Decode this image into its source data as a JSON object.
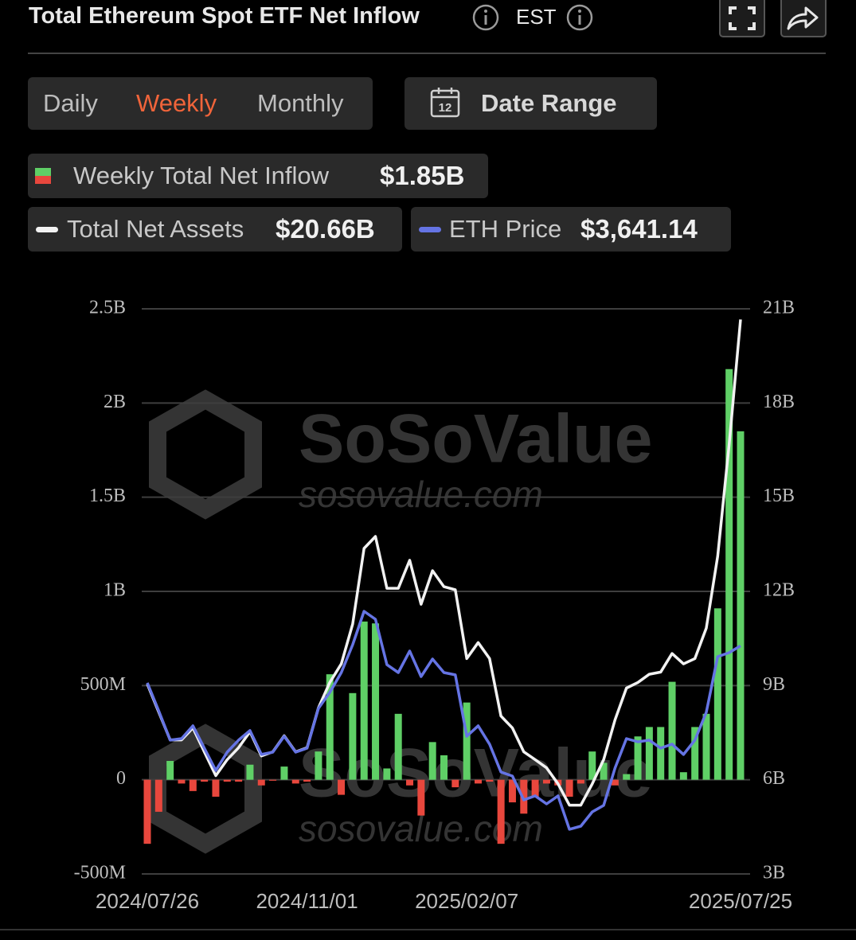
{
  "chart_data": {
    "type": "bar",
    "title": "Total Ethereum Spot ETF Net Inflow",
    "timezone": "EST",
    "periods": [
      "Daily",
      "Weekly",
      "Monthly"
    ],
    "selected_period": 1,
    "date_range": "Date Range",
    "date_range_icon": "12",
    "watermark": [
      "SoSoValue",
      "sosovalue.com"
    ],
    "categories": [
      "2024/07/26",
      null,
      null,
      null,
      null,
      null,
      null,
      null,
      null,
      null,
      null,
      null,
      null,
      null,
      "2024/11/01",
      null,
      null,
      null,
      null,
      null,
      null,
      null,
      null,
      null,
      null,
      null,
      null,
      null,
      "2025/02/07",
      null,
      null,
      null,
      null,
      null,
      null,
      null,
      null,
      null,
      null,
      null,
      null,
      null,
      null,
      null,
      null,
      null,
      null,
      null,
      null,
      null,
      null,
      null,
      "2025/07/25"
    ],
    "series": [
      {
        "name": "Weekly Total Net Inflow",
        "type": "bar",
        "color": "#5fcf66",
        "negative_color": "#e8473d",
        "latest_label": "$1.85B",
        "values": [
          -0.34,
          -0.17,
          0.1,
          -0.02,
          -0.06,
          -0.01,
          -0.09,
          -0.01,
          -0.01,
          0.08,
          -0.03,
          -0.005,
          0.07,
          -0.02,
          -0.01,
          0.15,
          0.56,
          -0.08,
          0.46,
          0.84,
          0.83,
          0.06,
          0.35,
          -0.03,
          -0.19,
          0.2,
          0.13,
          -0.04,
          0.41,
          -0.02,
          -0.01,
          -0.34,
          -0.12,
          -0.18,
          -0.09,
          -0.02,
          -0.03,
          -0.09,
          -0.02,
          0.15,
          0.09,
          -0.03,
          0.03,
          0.23,
          0.28,
          0.28,
          0.52,
          0.04,
          0.28,
          0.35,
          0.91,
          2.18,
          1.85
        ]
      },
      {
        "name": "Total Net Assets",
        "type": "line",
        "axis": "y2",
        "color": "#f2f2f2",
        "latest_label": "$20.66B",
        "values": [
          9.05,
          8.16,
          7.27,
          7.27,
          7.65,
          6.89,
          6.13,
          6.64,
          7.02,
          7.53,
          6.76,
          6.89,
          7.4,
          6.89,
          7.02,
          8.29,
          9.1,
          9.69,
          10.96,
          13.37,
          13.75,
          12.1,
          12.1,
          12.99,
          11.59,
          12.66,
          12.15,
          12.05,
          9.86,
          10.37,
          9.86,
          8.03,
          7.65,
          6.89,
          6.64,
          6.38,
          5.87,
          5.19,
          5.19,
          5.87,
          6.64,
          7.91,
          8.92,
          9.1,
          9.36,
          9.43,
          10.02,
          9.69,
          9.86,
          10.83,
          13.12,
          16.68,
          20.66
        ]
      },
      {
        "name": "ETH Price",
        "type": "line",
        "axis": "y3",
        "color": "#6574e4",
        "latest_label": "$3,641.14",
        "values": [
          3261,
          2975,
          2673,
          2689,
          2820,
          2591,
          2362,
          2550,
          2673,
          2771,
          2526,
          2550,
          2713,
          2550,
          2591,
          2999,
          3163,
          3367,
          3653,
          3996,
          3914,
          3448,
          3367,
          3588,
          3326,
          3506,
          3367,
          3343,
          2713,
          2820,
          2632,
          2346,
          2305,
          2060,
          2101,
          2019,
          2101,
          1758,
          1790,
          1937,
          2003,
          2387,
          2689,
          2656,
          2673,
          2591,
          2632,
          2526,
          2673,
          2959,
          3530,
          3571,
          3641.14
        ]
      }
    ],
    "ylim": [
      -0.5,
      2.5
    ],
    "yticks": [
      {
        "value": -0.5,
        "label": "-500M"
      },
      0,
      {
        "value": 0.5,
        "label": "500M"
      },
      {
        "value": 1,
        "label": "1B"
      },
      {
        "value": 1.5,
        "label": "1.5B"
      },
      {
        "value": 2,
        "label": "2B"
      },
      {
        "value": 2.5,
        "label": "2.5B"
      }
    ],
    "y2lim": [
      3,
      21
    ],
    "y2ticks": [
      {
        "value": 3,
        "label": "3B"
      },
      {
        "value": 6,
        "label": "6B"
      },
      {
        "value": 9,
        "label": "9B"
      },
      {
        "value": 12,
        "label": "12B"
      },
      {
        "value": 15,
        "label": "15B"
      },
      {
        "value": 18,
        "label": "18B"
      },
      {
        "value": 21,
        "label": "21B"
      }
    ],
    "y3lim": [
      1300,
      7100
    ],
    "grid": true
  }
}
